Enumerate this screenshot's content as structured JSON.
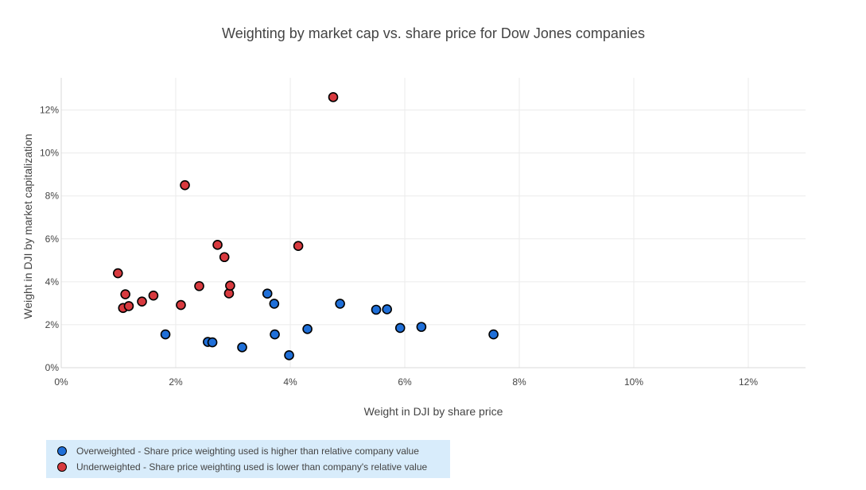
{
  "chart_data": {
    "type": "scatter",
    "title": "Weighting by market cap vs. share price for Dow Jones companies",
    "xlabel": "Weight in DJI by share price",
    "ylabel": "Weight in DJI by market capitalization",
    "xlim": [
      0,
      13
    ],
    "ylim": [
      0,
      13.5
    ],
    "x_ticks": [
      0,
      2,
      4,
      6,
      8,
      10,
      12
    ],
    "y_ticks": [
      0,
      2,
      4,
      6,
      8,
      10,
      12
    ],
    "x_tick_labels": [
      "0%",
      "2%",
      "4%",
      "6%",
      "8%",
      "10%",
      "12%"
    ],
    "y_tick_labels": [
      "0%",
      "2%",
      "4%",
      "6%",
      "8%",
      "10%",
      "12%"
    ],
    "grid": true,
    "legend_position": "bottom-left",
    "series": [
      {
        "name": "Overweighted - Share price weighting used is higher than relative company value",
        "color": "#1f6fd8",
        "points": [
          [
            1.82,
            1.55
          ],
          [
            2.56,
            1.2
          ],
          [
            2.64,
            1.18
          ],
          [
            3.16,
            0.95
          ],
          [
            3.6,
            3.45
          ],
          [
            3.72,
            2.98
          ],
          [
            3.73,
            1.55
          ],
          [
            3.98,
            0.58
          ],
          [
            4.3,
            1.8
          ],
          [
            4.87,
            2.98
          ],
          [
            5.5,
            2.7
          ],
          [
            5.69,
            2.72
          ],
          [
            5.92,
            1.85
          ],
          [
            6.29,
            1.9
          ],
          [
            7.55,
            1.55
          ]
        ]
      },
      {
        "name": "Underweighted - Share price weighting used is lower than company's relative value",
        "color": "#d83a3f",
        "points": [
          [
            0.99,
            4.4
          ],
          [
            1.08,
            2.78
          ],
          [
            1.12,
            3.42
          ],
          [
            1.18,
            2.87
          ],
          [
            1.41,
            3.08
          ],
          [
            1.61,
            3.36
          ],
          [
            2.09,
            2.92
          ],
          [
            2.16,
            8.5
          ],
          [
            2.41,
            3.8
          ],
          [
            2.73,
            5.72
          ],
          [
            2.85,
            5.15
          ],
          [
            2.93,
            3.46
          ],
          [
            2.95,
            3.82
          ],
          [
            4.14,
            5.67
          ],
          [
            4.75,
            12.6
          ]
        ]
      }
    ]
  }
}
